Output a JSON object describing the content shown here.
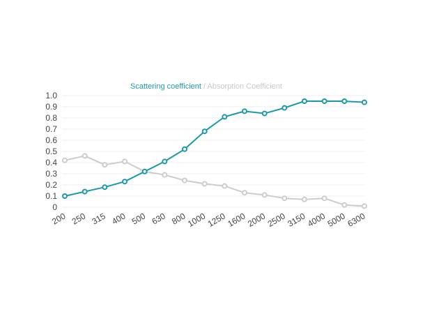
{
  "chart_data": {
    "type": "line",
    "title": {
      "series_1": "Scattering coefficient",
      "separator": " / ",
      "series_2": "Absorption Coefficient"
    },
    "categories": [
      "200",
      "250",
      "315",
      "400",
      "500",
      "630",
      "800",
      "1000",
      "1250",
      "1600",
      "2000",
      "2500",
      "3150",
      "4000",
      "5000",
      "6300"
    ],
    "yticks": [
      "0",
      "0.1",
      "0.2",
      "0.3",
      "0.4",
      "0.5",
      "0.6",
      "0.7",
      "0.8",
      "0.9",
      "1.0"
    ],
    "ylim": [
      0,
      1.0
    ],
    "xlabel": "",
    "ylabel": "",
    "grid": true,
    "legend": "none",
    "series": [
      {
        "name": "Scattering coefficient",
        "color": "#1a9aa8",
        "values": [
          0.1,
          0.14,
          0.18,
          0.23,
          0.32,
          0.41,
          0.52,
          0.68,
          0.81,
          0.86,
          0.84,
          0.89,
          0.95,
          0.95,
          0.95,
          0.94
        ]
      },
      {
        "name": "Absorption Coefficient",
        "color": "#cccccc",
        "values": [
          0.42,
          0.46,
          0.38,
          0.41,
          0.32,
          0.29,
          0.24,
          0.21,
          0.19,
          0.13,
          0.11,
          0.08,
          0.07,
          0.08,
          0.02,
          0.01
        ]
      }
    ]
  },
  "colors": {
    "title_series_1": "#1a9aa8",
    "title_series_2": "#c8c8c8",
    "grid": "#ececec",
    "tick_text": "#444444"
  }
}
